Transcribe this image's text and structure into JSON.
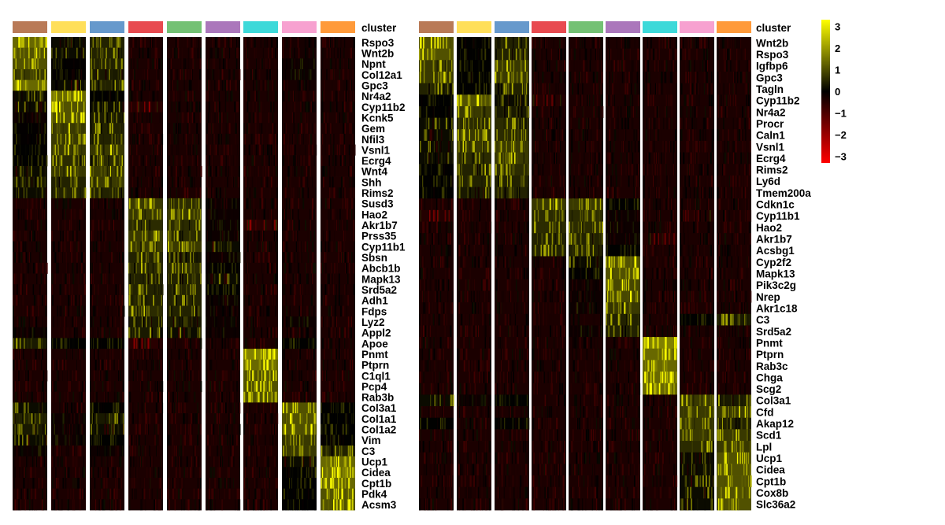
{
  "chart_data": [
    {
      "type": "heatmap",
      "annotation_label": "cluster",
      "clusters": [
        1,
        2,
        3,
        4,
        5,
        6,
        7,
        8,
        9
      ],
      "cluster_colors": [
        "#b97a57",
        "#ffdf5a",
        "#6699cc",
        "#e84a50",
        "#74c174",
        "#ab77bb",
        "#3dd9d9",
        "#f7a1d0",
        "#ff9a3a"
      ],
      "genes": [
        "Rspo3",
        "Wnt2b",
        "Npnt",
        "Col12a1",
        "Gpc3",
        "Nr4a2",
        "Cyp11b2",
        "Kcnk5",
        "Gem",
        "Nfil3",
        "Vsnl1",
        "Ecrg4",
        "Wnt4",
        "Shh",
        "Rims2",
        "Susd3",
        "Hao2",
        "Akr1b7",
        "Prss35",
        "Cyp11b1",
        "Sbsn",
        "Abcb1b",
        "Mapk13",
        "Srd5a2",
        "Adh1",
        "Fdps",
        "Lyz2",
        "Appl2",
        "Apoe",
        "Pnmt",
        "Ptprn",
        "C1ql1",
        "Pcp4",
        "Rab3b",
        "Col3a1",
        "Col1a1",
        "Col1a2",
        "Vim",
        "C3",
        "Ucp1",
        "Cidea",
        "Cpt1b",
        "Pdk4",
        "Acsm3"
      ],
      "values": [
        [
          2.5,
          0.5,
          1,
          -0.3,
          -0.3,
          -0.3,
          -0.3,
          -0.2,
          -0.3
        ],
        [
          2,
          0.5,
          1,
          -0.3,
          -0.3,
          -0.3,
          -0.3,
          -0.2,
          -0.3
        ],
        [
          2,
          0.2,
          1,
          -0.3,
          -0.3,
          -0.3,
          -0.3,
          0,
          -0.3
        ],
        [
          1.5,
          0.2,
          0.8,
          -0.3,
          -0.3,
          -0.3,
          -0.3,
          0,
          -0.3
        ],
        [
          2.5,
          0.5,
          1,
          -0.3,
          -0.3,
          -0.3,
          -0.3,
          -0.2,
          -0.3
        ],
        [
          0.5,
          2.5,
          0.3,
          -0.3,
          -0.3,
          -0.3,
          -0.3,
          -0.3,
          -0.3
        ],
        [
          0.5,
          2,
          0.5,
          -0.5,
          -0.3,
          -0.3,
          -0.3,
          -0.3,
          -0.3
        ],
        [
          0,
          2,
          0.8,
          -0.3,
          -0.3,
          -0.3,
          -0.3,
          -0.3,
          -0.3
        ],
        [
          0.2,
          1.5,
          1,
          -0.3,
          -0.3,
          -0.3,
          -0.3,
          -0.3,
          -0.3
        ],
        [
          0.2,
          1.5,
          1,
          -0.3,
          -0.3,
          -0.3,
          -0.3,
          -0.3,
          -0.3
        ],
        [
          0.3,
          1.5,
          1.5,
          -0.3,
          -0.3,
          -0.3,
          -0.3,
          -0.3,
          -0.3
        ],
        [
          0.3,
          1.2,
          1.2,
          -0.3,
          -0.3,
          -0.3,
          -0.3,
          -0.3,
          -0.3
        ],
        [
          0.5,
          1.5,
          1.5,
          -0.3,
          -0.3,
          -0.3,
          -0.3,
          -0.3,
          -0.3
        ],
        [
          0.8,
          1,
          1.5,
          -0.3,
          -0.3,
          -0.3,
          -0.3,
          -0.3,
          -0.3
        ],
        [
          0.5,
          1,
          1,
          -0.3,
          -0.3,
          -0.3,
          -0.3,
          -0.3,
          -0.3
        ],
        [
          -0.3,
          -0.3,
          -0.3,
          1.5,
          1.2,
          0,
          -0.3,
          -0.3,
          -0.3
        ],
        [
          -0.3,
          -0.3,
          -0.3,
          1.5,
          1.5,
          0,
          -0.3,
          -0.3,
          -0.3
        ],
        [
          -0.3,
          -0.3,
          -0.3,
          1.2,
          1.2,
          0,
          -0.6,
          -0.3,
          -0.3
        ],
        [
          -0.3,
          -0.3,
          -0.3,
          1.5,
          1.2,
          0,
          -0.3,
          -0.3,
          -0.3
        ],
        [
          -0.3,
          -0.3,
          -0.3,
          1.5,
          1.5,
          0.5,
          -0.3,
          -0.3,
          -0.3
        ],
        [
          -0.3,
          -0.3,
          -0.3,
          1,
          0.8,
          0,
          -0.3,
          -0.3,
          -0.3
        ],
        [
          -0.3,
          -0.3,
          -0.3,
          1.2,
          1.2,
          0.2,
          -0.3,
          -0.3,
          -0.3
        ],
        [
          -0.3,
          -0.3,
          -0.3,
          1,
          1,
          0.5,
          -0.3,
          -0.3,
          -0.3
        ],
        [
          -0.3,
          -0.3,
          -0.3,
          1,
          1,
          0.3,
          -0.3,
          -0.3,
          -0.3
        ],
        [
          -0.3,
          -0.3,
          -0.3,
          1,
          1,
          0,
          -0.3,
          -0.3,
          -0.3
        ],
        [
          -0.3,
          -0.3,
          -0.3,
          1.2,
          1,
          0,
          -0.3,
          -0.3,
          -0.3
        ],
        [
          -0.3,
          -0.3,
          -0.3,
          0.8,
          0.8,
          0,
          -0.3,
          0,
          -0.3
        ],
        [
          0,
          -0.3,
          -0.3,
          0.8,
          0.5,
          0,
          -0.3,
          -0.3,
          -0.3
        ],
        [
          0.8,
          0.3,
          0.3,
          -0.6,
          -0.3,
          -0.3,
          -0.3,
          0.3,
          -0.3
        ],
        [
          -0.3,
          -0.3,
          -0.3,
          -0.3,
          -0.3,
          -0.3,
          3,
          -0.3,
          -0.3
        ],
        [
          -0.3,
          -0.3,
          -0.3,
          -0.3,
          -0.3,
          -0.3,
          2.5,
          -0.3,
          -0.3
        ],
        [
          -0.3,
          -0.3,
          -0.3,
          -0.3,
          -0.3,
          -0.3,
          2,
          -0.3,
          -0.3
        ],
        [
          -0.3,
          -0.3,
          -0.3,
          -0.3,
          -0.3,
          -0.3,
          2,
          -0.3,
          -0.3
        ],
        [
          -0.3,
          -0.3,
          -0.3,
          -0.3,
          -0.3,
          -0.3,
          2,
          -0.3,
          -0.3
        ],
        [
          0.5,
          -0.3,
          0.3,
          -0.3,
          -0.3,
          -0.3,
          -0.3,
          2,
          0.3
        ],
        [
          1,
          0,
          0.8,
          -0.3,
          -0.3,
          -0.3,
          -0.3,
          2,
          0.3
        ],
        [
          0.8,
          0,
          0.5,
          -0.3,
          -0.3,
          -0.3,
          -0.3,
          2,
          0.3
        ],
        [
          0.5,
          0,
          0.3,
          -0.3,
          -0.3,
          -0.3,
          -0.3,
          1.5,
          0.3
        ],
        [
          0,
          -0.3,
          0,
          -0.3,
          -0.3,
          -0.3,
          -0.3,
          1.5,
          1
        ],
        [
          -0.3,
          -0.3,
          -0.3,
          -0.3,
          -0.3,
          -0.3,
          -0.3,
          0.5,
          2.5
        ],
        [
          -0.3,
          -0.3,
          -0.3,
          -0.3,
          -0.3,
          -0.3,
          -0.3,
          0.3,
          2.5
        ],
        [
          -0.3,
          -0.3,
          -0.3,
          -0.3,
          -0.3,
          -0.3,
          -0.3,
          0.3,
          2.5
        ],
        [
          -0.3,
          -0.3,
          -0.3,
          -0.3,
          -0.3,
          -0.3,
          -0.3,
          0.3,
          2
        ],
        [
          -0.3,
          -0.3,
          -0.3,
          -0.3,
          -0.3,
          -0.3,
          -0.3,
          0.3,
          2
        ]
      ]
    },
    {
      "type": "heatmap",
      "annotation_label": "cluster",
      "clusters": [
        1,
        2,
        3,
        4,
        5,
        6,
        7,
        8,
        9
      ],
      "cluster_colors": [
        "#b97a57",
        "#ffdf5a",
        "#6699cc",
        "#e84a50",
        "#74c174",
        "#ab77bb",
        "#3dd9d9",
        "#f7a1d0",
        "#ff9a3a"
      ],
      "genes": [
        "Wnt2b",
        "Rspo3",
        "Igfbp6",
        "Gpc3",
        "Tagln",
        "Cyp11b2",
        "Nr4a2",
        "Procr",
        "Caln1",
        "Vsnl1",
        "Ecrg4",
        "Rims2",
        "Ly6d",
        "Tmem200a",
        "Cdkn1c",
        "Cyp11b1",
        "Hao2",
        "Akr1b7",
        "Acsbg1",
        "Cyp2f2",
        "Mapk13",
        "Pik3c2g",
        "Nrep",
        "Akr1c18",
        "C3",
        "Srd5a2",
        "Pnmt",
        "Ptprn",
        "Rab3c",
        "Chga",
        "Scg2",
        "Col3a1",
        "Cfd",
        "Akap12",
        "Scd1",
        "Lpl",
        "Ucp1",
        "Cidea",
        "Cpt1b",
        "Cox8b",
        "Slc36a2"
      ],
      "values": [
        [
          2,
          0.3,
          1,
          -0.3,
          -0.3,
          -0.3,
          -0.3,
          -0.3,
          -0.3
        ],
        [
          2,
          0.3,
          1,
          -0.3,
          -0.3,
          -0.3,
          -0.3,
          -0.3,
          -0.3
        ],
        [
          1.5,
          0.3,
          1.5,
          -0.3,
          -0.3,
          -0.3,
          -0.3,
          -0.3,
          -0.3
        ],
        [
          1.5,
          0.3,
          1.5,
          -0.3,
          -0.3,
          -0.3,
          -0.3,
          -0.3,
          -0.3
        ],
        [
          1,
          0.3,
          1,
          -0.3,
          -0.3,
          -0.3,
          -0.3,
          -0.3,
          -0.3
        ],
        [
          0.3,
          2,
          0.5,
          -0.5,
          -0.3,
          -0.3,
          -0.3,
          -0.3,
          -0.3
        ],
        [
          0.3,
          1.5,
          0.8,
          -0.3,
          -0.3,
          -0.3,
          -0.3,
          -0.3,
          -0.3
        ],
        [
          0.5,
          1.2,
          1.2,
          -0.3,
          -0.3,
          -0.3,
          -0.3,
          -0.3,
          -0.3
        ],
        [
          0.5,
          1.5,
          1.2,
          -0.3,
          -0.3,
          -0.3,
          -0.3,
          -0.3,
          -0.3
        ],
        [
          0.5,
          1.5,
          1.5,
          -0.3,
          -0.3,
          -0.3,
          -0.3,
          -0.3,
          -0.3
        ],
        [
          0.5,
          1.2,
          1.5,
          -0.3,
          -0.3,
          -0.3,
          -0.3,
          -0.3,
          -0.3
        ],
        [
          0.3,
          1,
          1.2,
          -0.3,
          -0.3,
          -0.3,
          -0.3,
          -0.3,
          -0.3
        ],
        [
          0.3,
          1,
          1,
          -0.3,
          -0.3,
          -0.3,
          -0.3,
          -0.3,
          -0.3
        ],
        [
          0.3,
          0.8,
          1,
          -0.3,
          -0.3,
          -0.3,
          -0.3,
          -0.3,
          -0.3
        ],
        [
          -0.3,
          -0.3,
          -0.3,
          1.5,
          1.5,
          0.3,
          -0.3,
          -0.3,
          -0.3
        ],
        [
          -0.5,
          -0.3,
          -0.3,
          1.2,
          1.2,
          0,
          -0.3,
          -0.5,
          -0.3
        ],
        [
          -0.3,
          -0.3,
          -0.3,
          1.2,
          1.2,
          0,
          -0.3,
          -0.3,
          -0.3
        ],
        [
          -0.3,
          -0.3,
          -0.3,
          1,
          1,
          0,
          -0.5,
          -0.3,
          -0.3
        ],
        [
          -0.3,
          -0.3,
          -0.3,
          1,
          1,
          0.3,
          -0.3,
          -0.3,
          -0.3
        ],
        [
          -0.3,
          -0.3,
          -0.3,
          -0.3,
          0.5,
          2,
          -0.3,
          -0.3,
          -0.3
        ],
        [
          -0.3,
          -0.3,
          -0.3,
          -0.3,
          0.3,
          2,
          -0.3,
          -0.3,
          -0.3
        ],
        [
          -0.3,
          -0.3,
          -0.3,
          -0.3,
          0,
          1.8,
          -0.3,
          -0.3,
          -0.3
        ],
        [
          -0.3,
          -0.3,
          -0.3,
          -0.3,
          0,
          1.8,
          -0.3,
          -0.3,
          -0.3
        ],
        [
          -0.3,
          -0.3,
          -0.3,
          -0.3,
          0,
          1.5,
          -0.3,
          -0.3,
          -0.3
        ],
        [
          -0.3,
          -0.3,
          -0.3,
          -0.3,
          -0.3,
          1,
          -0.3,
          0.3,
          0.8
        ],
        [
          -0.3,
          -0.3,
          -0.3,
          -0.3,
          0,
          1,
          -0.3,
          -0.3,
          -0.3
        ],
        [
          -0.3,
          -0.3,
          -0.3,
          -0.3,
          -0.3,
          -0.3,
          3,
          -0.3,
          -0.3
        ],
        [
          -0.3,
          -0.3,
          -0.3,
          -0.3,
          -0.3,
          -0.3,
          2.5,
          -0.3,
          -0.3
        ],
        [
          -0.3,
          -0.3,
          -0.3,
          -0.3,
          -0.3,
          -0.3,
          2.5,
          -0.3,
          -0.3
        ],
        [
          -0.3,
          -0.3,
          -0.3,
          -0.3,
          -0.3,
          -0.3,
          2.5,
          -0.3,
          -0.3
        ],
        [
          -0.3,
          -0.3,
          -0.3,
          -0.3,
          -0.3,
          -0.3,
          2.5,
          -0.3,
          -0.3
        ],
        [
          0.5,
          0,
          0.3,
          -0.3,
          -0.3,
          -0.3,
          -0.3,
          1.5,
          0.8
        ],
        [
          -0.3,
          -0.3,
          -0.3,
          -0.3,
          -0.3,
          -0.3,
          -0.3,
          1.5,
          1.5
        ],
        [
          0.3,
          -0.3,
          0.3,
          -0.3,
          -0.3,
          -0.3,
          -0.3,
          1.5,
          1
        ],
        [
          -0.3,
          -0.3,
          -0.3,
          -0.3,
          -0.3,
          -0.3,
          -0.3,
          1.5,
          1.5
        ],
        [
          -0.3,
          -0.3,
          -0.3,
          -0.3,
          -0.3,
          -0.3,
          -0.3,
          1.2,
          1.5
        ],
        [
          -0.3,
          -0.3,
          -0.3,
          -0.3,
          -0.3,
          -0.3,
          -0.3,
          0.5,
          2
        ],
        [
          -0.3,
          -0.3,
          -0.3,
          -0.3,
          -0.3,
          -0.3,
          -0.3,
          0.5,
          2
        ],
        [
          -0.3,
          -0.3,
          -0.3,
          -0.3,
          -0.3,
          -0.3,
          -0.3,
          0.5,
          2
        ],
        [
          -0.3,
          -0.3,
          -0.3,
          -0.3,
          -0.3,
          -0.3,
          -0.3,
          0.5,
          2
        ],
        [
          -0.3,
          -0.3,
          -0.3,
          -0.3,
          -0.3,
          -0.3,
          -0.3,
          0.5,
          2
        ]
      ]
    }
  ],
  "colorbar": {
    "ticks": [
      "3",
      "2",
      "1",
      "0",
      "−1",
      "−2",
      "−3"
    ],
    "tick_values": [
      3,
      2,
      1,
      0,
      -1,
      -2,
      -3
    ],
    "range": [
      -3.3,
      3.3
    ],
    "colors": {
      "high": "#ffff00",
      "mid": "#000000",
      "low": "#ff0000"
    }
  }
}
